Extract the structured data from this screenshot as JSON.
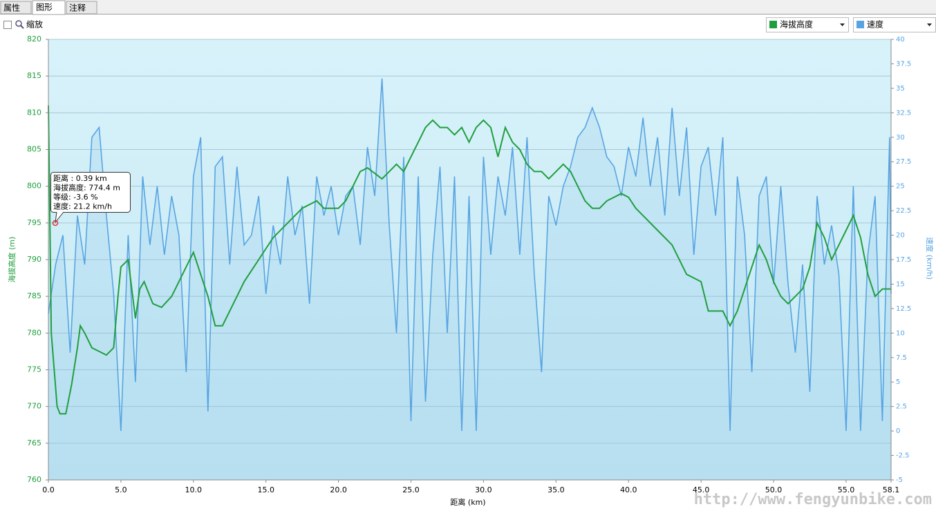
{
  "tabs": [
    "属性",
    "图形",
    "注释"
  ],
  "zoom_label": "缩放",
  "watermark": "http://www.fengyunbike.com",
  "chart_data": {
    "type": "line",
    "x_label": "距离  (km)",
    "y_label": "海拔高度 (m)",
    "y2_label": "速度 (km/h)",
    "xlim": [
      0,
      58.1
    ],
    "ylim": [
      760,
      820
    ],
    "y2lim": [
      -5,
      40
    ],
    "grid": true,
    "xticks": [
      {
        "value": 0,
        "label": "0.0"
      },
      {
        "value": 5,
        "label": "5.0"
      },
      {
        "value": 10,
        "label": "10.0"
      },
      {
        "value": 15,
        "label": "15.0"
      },
      {
        "value": 20,
        "label": "20.0"
      },
      {
        "value": 25,
        "label": "25.0"
      },
      {
        "value": 30,
        "label": "30.0"
      },
      {
        "value": 35,
        "label": "35.0"
      },
      {
        "value": 40,
        "label": "40.0"
      },
      {
        "value": 45,
        "label": "45.0"
      },
      {
        "value": 50,
        "label": "50.0"
      },
      {
        "value": 55,
        "label": "55.0"
      },
      58.1
    ],
    "yticks": [
      760,
      765,
      770,
      775,
      780,
      785,
      790,
      795,
      800,
      805,
      810,
      815,
      820
    ],
    "y2ticks": [
      -5,
      -2.5,
      0,
      2.5,
      5,
      7.5,
      10,
      12.5,
      15,
      17.5,
      20,
      22.5,
      25,
      27.5,
      30,
      32.5,
      35,
      37.5,
      40
    ],
    "tooltip": [
      "距离  : 0.39 km",
      "海拔高度: 774.4 m",
      "等级: -3.6 %",
      "速度: 21.2 km/h"
    ],
    "series": [
      {
        "name": "海拔高度",
        "color": "#1f9e3e",
        "x": [
          0,
          0.2,
          0.4,
          0.6,
          0.8,
          1.2,
          1.6,
          2.0,
          2.2,
          2.5,
          3.0,
          3.5,
          4.0,
          4.5,
          4.8,
          5.0,
          5.5,
          6.0,
          6.3,
          6.6,
          7.2,
          7.8,
          8.5,
          9.0,
          9.5,
          10.0,
          10.5,
          11.0,
          11.5,
          12.0,
          12.5,
          13.0,
          13.5,
          14.5,
          15.5,
          16.5,
          17.5,
          18.5,
          19.0,
          20.0,
          20.5,
          21.0,
          21.5,
          22.0,
          23.0,
          23.5,
          24.0,
          24.5,
          25.0,
          25.5,
          26.0,
          26.5,
          27.0,
          27.5,
          28.0,
          28.5,
          29.0,
          29.5,
          30.0,
          30.5,
          31.0,
          31.5,
          32.0,
          32.5,
          33.0,
          33.5,
          34.0,
          34.5,
          35.0,
          35.5,
          36.0,
          36.5,
          37.0,
          37.5,
          38.0,
          38.5,
          39.5,
          40.0,
          40.5,
          41.0,
          42.0,
          43.0,
          44.0,
          45.0,
          45.5,
          46.5,
          47.0,
          47.5,
          48.0,
          48.5,
          49.0,
          49.5,
          50.0,
          50.5,
          51.0,
          52.0,
          52.5,
          53.0,
          53.5,
          54.0,
          54.5,
          55.0,
          55.5,
          56.0,
          56.5,
          57.0,
          57.5,
          58.1
        ],
        "values": [
          811,
          780,
          775,
          770,
          769,
          769,
          773,
          778,
          781,
          780,
          778,
          777.5,
          777,
          778,
          785,
          789,
          790,
          782,
          786,
          787,
          784,
          783.5,
          785,
          787,
          789,
          791,
          788,
          785,
          781,
          781,
          783,
          785,
          787,
          790,
          793,
          795,
          797,
          798,
          797,
          797,
          798,
          800,
          802,
          802.5,
          801,
          802,
          803,
          802,
          804,
          806,
          808,
          809,
          808,
          808,
          807,
          808,
          806,
          808,
          809,
          808,
          804,
          808,
          806,
          805,
          803,
          802,
          802,
          801,
          802,
          803,
          802,
          800,
          798,
          797,
          797,
          798,
          799,
          798.5,
          797,
          796,
          794,
          792,
          788,
          787,
          783,
          783,
          781,
          783,
          786,
          789,
          792,
          790,
          787,
          785,
          784,
          786,
          789,
          795,
          793,
          790,
          792,
          794,
          796,
          793,
          788,
          785,
          786,
          786
        ]
      },
      {
        "name": "速度",
        "color": "#58a4e2",
        "axis": "y2",
        "x": [
          0,
          0.5,
          1.0,
          1.5,
          2.0,
          2.5,
          3.0,
          3.5,
          4.0,
          4.5,
          5.0,
          5.5,
          6.0,
          6.5,
          7.0,
          7.5,
          8.0,
          8.5,
          9.0,
          9.5,
          10.0,
          10.5,
          11.0,
          11.5,
          12.0,
          12.5,
          13.0,
          13.5,
          14.0,
          14.5,
          15.0,
          15.5,
          16.0,
          16.5,
          17.0,
          17.5,
          18.0,
          18.5,
          19.0,
          19.5,
          20.0,
          20.5,
          21.0,
          21.5,
          22.0,
          22.5,
          23.0,
          23.5,
          24.0,
          24.5,
          25.0,
          25.5,
          26.0,
          26.5,
          27.0,
          27.5,
          28.0,
          28.5,
          29.0,
          29.5,
          30.0,
          30.5,
          31.0,
          31.5,
          32.0,
          32.5,
          33.0,
          33.5,
          34.0,
          34.5,
          35.0,
          35.5,
          36.0,
          36.5,
          37.0,
          37.5,
          38.0,
          38.5,
          39.0,
          39.5,
          40.0,
          40.5,
          41.0,
          41.5,
          42.0,
          42.5,
          43.0,
          43.5,
          44.0,
          44.5,
          45.0,
          45.5,
          46.0,
          46.5,
          47.0,
          47.5,
          48.0,
          48.5,
          49.0,
          49.5,
          50.0,
          50.5,
          51.0,
          51.5,
          52.0,
          52.5,
          53.0,
          53.5,
          54.0,
          54.5,
          55.0,
          55.5,
          56.0,
          56.5,
          57.0,
          57.5,
          58.0,
          58.1
        ],
        "values": [
          12,
          17,
          20,
          8,
          22,
          17,
          30,
          31,
          22,
          14,
          0,
          20,
          5,
          26,
          19,
          25,
          18,
          24,
          20,
          6,
          26,
          30,
          2,
          27,
          28,
          17,
          27,
          19,
          20,
          24,
          14,
          21,
          17,
          26,
          20,
          23,
          13,
          26,
          22,
          25,
          20,
          24,
          25,
          19,
          29,
          24,
          36,
          21,
          10,
          28,
          1,
          26,
          3,
          18,
          27,
          10,
          26,
          0,
          24,
          0,
          28,
          18,
          26,
          22,
          29,
          18,
          30,
          16,
          6,
          24,
          21,
          25,
          27,
          30,
          31,
          33,
          31,
          28,
          27,
          24,
          29,
          26,
          32,
          25,
          30,
          22,
          33,
          24,
          31,
          18,
          27,
          29,
          22,
          30,
          0,
          26,
          20,
          6,
          24,
          26,
          15,
          25,
          15,
          8,
          17,
          4,
          24,
          17,
          21,
          16,
          0,
          25,
          0,
          18,
          24,
          1,
          30,
          14
        ]
      }
    ]
  }
}
